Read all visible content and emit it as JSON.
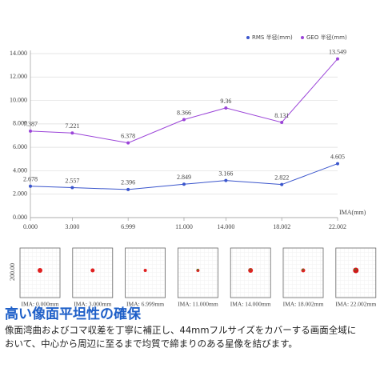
{
  "chart_data": {
    "type": "line",
    "x": [
      0,
      3,
      6.999,
      11,
      14,
      18.002,
      22.002
    ],
    "series": [
      {
        "name": "RMS 半径(mm)",
        "color": "#3a55cc",
        "values": [
          2.678,
          2.557,
          2.396,
          2.849,
          3.166,
          2.822,
          4.605
        ]
      },
      {
        "name": "GEO 半径(mm)",
        "color": "#9b44d8",
        "values": [
          7.387,
          7.221,
          6.378,
          8.366,
          9.36,
          8.131,
          13.549
        ]
      }
    ],
    "x_label": "IMA(mm)",
    "xlim": [
      0,
      22.002
    ],
    "xticks": [
      {
        "value": 0,
        "label": "0.000"
      },
      {
        "value": 3,
        "label": "3.000"
      },
      {
        "value": 6.999,
        "label": "6.999"
      },
      {
        "value": 11,
        "label": "11.000"
      },
      {
        "value": 14,
        "label": "14.000"
      },
      {
        "value": 18.002,
        "label": "18.002"
      },
      {
        "value": 22.002,
        "label": "22.002"
      }
    ],
    "ylim": [
      0,
      14
    ],
    "yticks": [
      {
        "value": 0,
        "label": "0.000"
      },
      {
        "value": 2,
        "label": "2.000"
      },
      {
        "value": 4,
        "label": "4.000"
      },
      {
        "value": 6,
        "label": "6.000"
      },
      {
        "value": 8,
        "label": "8.000"
      },
      {
        "value": 10,
        "label": "10.000"
      },
      {
        "value": 12,
        "label": "12.000"
      },
      {
        "value": 14,
        "label": "14.000"
      }
    ],
    "grid": true,
    "legend": "top-right"
  },
  "spots": {
    "scale_label": "200.00",
    "labels": [
      "IMA: 0.000mm",
      "IMA: 3.000mm",
      "IMA: 6.999mm",
      "IMA: 11.000mm",
      "IMA: 14.000mm",
      "IMA: 18.002mm",
      "IMA: 22.002mm"
    ]
  },
  "heading": "高い像面平坦性の確保",
  "body": [
    "像面湾曲およびコマ収差を丁寧に補正し、44mmフルサイズをカバーする画面全域に",
    "おいて、中心から周辺に至るまで均質で締まりのある星像を結びます。"
  ]
}
